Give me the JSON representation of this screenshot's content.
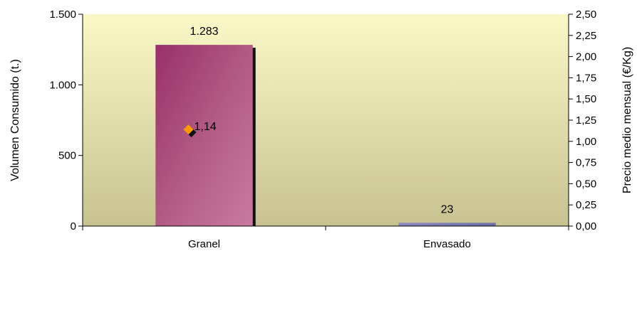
{
  "chart_data": {
    "type": "bar",
    "categories": [
      "Granel",
      "Envasado"
    ],
    "series": [
      {
        "axis": "left",
        "values": [
          1283,
          23
        ],
        "value_labels": [
          "1.283",
          "23"
        ],
        "colors": [
          "#a0386a",
          "#6f6fa8"
        ]
      },
      {
        "type": "scatter",
        "axis": "right",
        "values": [
          1.14,
          null
        ],
        "value_labels": [
          "1,14",
          ""
        ],
        "color": "#ff9900"
      }
    ],
    "ylabel": "Volumen Consumido (t.)",
    "y2label": "Precio medio mensual (€/Kg)",
    "ylim": [
      0,
      1500
    ],
    "y2lim": [
      0,
      2.5
    ],
    "yticks": [
      0,
      500,
      1000,
      1500
    ],
    "ytick_labels": [
      "0",
      "500",
      "1.000",
      "1.500"
    ],
    "y2ticks": [
      0,
      0.25,
      0.5,
      0.75,
      1.0,
      1.25,
      1.5,
      1.75,
      2.0,
      2.25,
      2.5
    ],
    "y2tick_labels": [
      "0,00",
      "0,25",
      "0,50",
      "0,75",
      "1,00",
      "1,25",
      "1,50",
      "1,75",
      "2,00",
      "2,25",
      "2,50"
    ],
    "grid": false,
    "legend": "none",
    "plot_background": [
      "#fbf8c8",
      "#c8c290"
    ]
  }
}
